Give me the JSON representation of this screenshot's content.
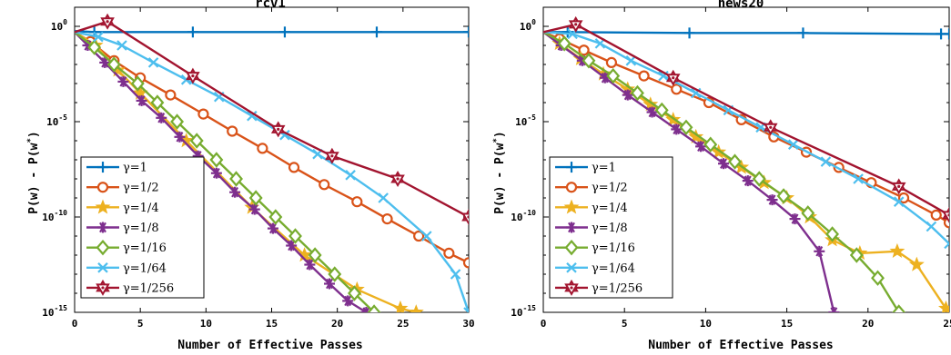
{
  "colors": {
    "g1": "#0072BD",
    "g2": "#D95319",
    "g4": "#EDB120",
    "g8": "#7E2F8E",
    "g16": "#77AC30",
    "g64": "#4DBEEE",
    "g256": "#A2142F"
  },
  "chart_data": [
    {
      "type": "line",
      "title": "rcv1",
      "xlabel": "Number of Effective Passes",
      "ylabel": "P(w) - P(w*)",
      "yscale": "log",
      "xlim": [
        0,
        30
      ],
      "ylim": [
        1e-15,
        10
      ],
      "xticks": [
        "0",
        "5",
        "10",
        "15",
        "20",
        "25",
        "30"
      ],
      "yticks": [
        {
          "base": "10",
          "exp": "0",
          "value": 0
        },
        {
          "base": "10",
          "exp": "-5",
          "value": -5
        },
        {
          "base": "10",
          "exp": "-10",
          "value": -10
        },
        {
          "base": "10",
          "exp": "-15",
          "value": -15
        }
      ],
      "legend_position": "lower-left",
      "series": [
        {
          "name": "γ=1",
          "color": "#0072BD",
          "marker": "plus",
          "x": [
            0,
            1.5,
            9,
            16,
            23,
            30
          ],
          "log10y": [
            -0.25,
            -0.3,
            -0.3,
            -0.3,
            -0.3,
            -0.3
          ]
        },
        {
          "name": "γ=1/2",
          "color": "#D95319",
          "marker": "circle",
          "x": [
            0,
            1.2,
            3,
            5,
            7.3,
            9.8,
            12,
            14.3,
            16.7,
            19,
            21.5,
            23.8,
            26.2,
            28.5,
            30
          ],
          "log10y": [
            -0.3,
            -0.8,
            -1.8,
            -2.7,
            -3.6,
            -4.6,
            -5.5,
            -6.4,
            -7.4,
            -8.3,
            -9.2,
            -10.1,
            -11.0,
            -11.9,
            -12.4
          ]
        },
        {
          "name": "γ=1/4",
          "color": "#EDB120",
          "marker": "star5",
          "x": [
            0,
            1.6,
            3.3,
            5,
            8.5,
            13.5,
            17.5,
            21.5,
            24.8,
            26
          ],
          "log10y": [
            -0.3,
            -1.0,
            -2.3,
            -3.5,
            -6.0,
            -9.5,
            -12.0,
            -13.8,
            -14.8,
            -15.0
          ]
        },
        {
          "name": "γ=1/8",
          "color": "#7E2F8E",
          "marker": "asterisk",
          "x": [
            0,
            1,
            2.3,
            3.7,
            5.1,
            6.6,
            8,
            9.4,
            10.8,
            12.2,
            13.7,
            15.1,
            16.5,
            17.9,
            19.4,
            20.8,
            22.2
          ],
          "log10y": [
            -0.3,
            -1.0,
            -1.9,
            -2.9,
            -3.9,
            -4.8,
            -5.8,
            -6.8,
            -7.7,
            -8.7,
            -9.6,
            -10.6,
            -11.5,
            -12.5,
            -13.5,
            -14.4,
            -15.0
          ]
        },
        {
          "name": "γ=1/16",
          "color": "#77AC30",
          "marker": "diamond",
          "x": [
            0,
            1.5,
            3,
            4.8,
            6.3,
            7.8,
            9.3,
            10.8,
            12.3,
            13.8,
            15.3,
            16.8,
            18.3,
            19.8,
            21.3,
            22.8
          ],
          "log10y": [
            -0.3,
            -1.1,
            -2.0,
            -3.0,
            -4.0,
            -5.0,
            -6.0,
            -7.0,
            -8.0,
            -9.0,
            -10.0,
            -11.0,
            -12.0,
            -13.0,
            -14.0,
            -15.0
          ]
        },
        {
          "name": "γ=1/64",
          "color": "#4DBEEE",
          "marker": "cross",
          "x": [
            0,
            1.8,
            3.6,
            6,
            8.5,
            11,
            13.5,
            16,
            18.5,
            21,
            23.5,
            26.8,
            29,
            30
          ],
          "log10y": [
            -0.3,
            -0.55,
            -1.0,
            -1.9,
            -2.8,
            -3.7,
            -4.7,
            -5.7,
            -6.7,
            -7.8,
            -9.0,
            -11.0,
            -13.0,
            -15.0
          ]
        },
        {
          "name": "γ=1/256",
          "color": "#A2142F",
          "marker": "hexagram",
          "x": [
            0,
            2.5,
            9,
            15.5,
            19.6,
            24.6,
            30
          ],
          "log10y": [
            -0.3,
            0.25,
            -2.6,
            -5.4,
            -6.8,
            -8.0,
            -10.0
          ]
        }
      ]
    },
    {
      "type": "line",
      "title": "news20",
      "xlabel": "Number of Effective Passes",
      "ylabel": "P(w) - P(w*)",
      "yscale": "log",
      "xlim": [
        0,
        25
      ],
      "ylim": [
        1e-15,
        10
      ],
      "xticks": [
        "0",
        "5",
        "10",
        "15",
        "20",
        "25"
      ],
      "yticks": [
        {
          "base": "10",
          "exp": "0",
          "value": 0
        },
        {
          "base": "10",
          "exp": "-5",
          "value": -5
        },
        {
          "base": "10",
          "exp": "-10",
          "value": -10
        },
        {
          "base": "10",
          "exp": "-15",
          "value": -15
        }
      ],
      "legend_position": "lower-left",
      "series": [
        {
          "name": "γ=1",
          "color": "#0072BD",
          "marker": "plus",
          "x": [
            0,
            1.5,
            9,
            16,
            24.5,
            25
          ],
          "log10y": [
            -0.3,
            -0.3,
            -0.35,
            -0.35,
            -0.4,
            -0.4
          ]
        },
        {
          "name": "γ=1/2",
          "color": "#D95319",
          "marker": "circle",
          "x": [
            0,
            1,
            2.5,
            4.2,
            6.2,
            8.2,
            10.2,
            12.2,
            14.2,
            16.2,
            18.2,
            20.2,
            22.2,
            24.2,
            25
          ],
          "log10y": [
            -0.3,
            -0.65,
            -1.25,
            -1.9,
            -2.6,
            -3.3,
            -4.0,
            -4.9,
            -5.8,
            -6.6,
            -7.4,
            -8.2,
            -9.0,
            -9.9,
            -10.3
          ]
        },
        {
          "name": "γ=1/4",
          "color": "#EDB120",
          "marker": "star5",
          "x": [
            0,
            1,
            2.3,
            3.7,
            5.2,
            6.6,
            8,
            9.4,
            10.8,
            12.2,
            13.6,
            15,
            16.4,
            17.8,
            19.5,
            21.8,
            23,
            24.8
          ],
          "log10y": [
            -0.3,
            -0.9,
            -1.7,
            -2.5,
            -3.3,
            -4.1,
            -4.9,
            -5.8,
            -6.6,
            -7.4,
            -8.2,
            -9.0,
            -10.0,
            -11.2,
            -11.9,
            -11.8,
            -12.5,
            -14.8
          ]
        },
        {
          "name": "γ=1/8",
          "color": "#7E2F8E",
          "marker": "asterisk",
          "x": [
            0,
            1.1,
            2.4,
            3.8,
            5.2,
            6.7,
            8.2,
            9.7,
            11.1,
            12.6,
            14.1,
            15.5,
            17,
            17.9
          ],
          "log10y": [
            -0.3,
            -1.0,
            -1.8,
            -2.7,
            -3.6,
            -4.5,
            -5.4,
            -6.3,
            -7.2,
            -8.1,
            -9.1,
            -10.1,
            -11.8,
            -15.0
          ]
        },
        {
          "name": "γ=1/16",
          "color": "#77AC30",
          "marker": "diamond",
          "x": [
            0,
            1.3,
            2.8,
            4.3,
            5.8,
            7.3,
            8.8,
            10.3,
            11.8,
            13.3,
            14.8,
            16.3,
            17.8,
            19.3,
            20.6,
            21.9
          ],
          "log10y": [
            -0.3,
            -0.9,
            -1.8,
            -2.6,
            -3.5,
            -4.4,
            -5.3,
            -6.2,
            -7.1,
            -8.0,
            -8.9,
            -9.8,
            -10.9,
            -12.0,
            -13.2,
            -15.0
          ]
        },
        {
          "name": "γ=1/64",
          "color": "#4DBEEE",
          "marker": "cross",
          "x": [
            0,
            1.8,
            3.5,
            5.4,
            7.4,
            9.4,
            11.4,
            13.4,
            15.4,
            17.4,
            19.4,
            21.9,
            23.9,
            25
          ],
          "log10y": [
            -0.3,
            -0.4,
            -0.9,
            -1.8,
            -2.6,
            -3.5,
            -4.4,
            -5.3,
            -6.2,
            -7.1,
            -8.0,
            -9.2,
            -10.5,
            -11.4
          ]
        },
        {
          "name": "γ=1/256",
          "color": "#A2142F",
          "marker": "hexagram",
          "x": [
            0,
            2,
            8,
            14,
            21.9,
            25
          ],
          "log10y": [
            -0.3,
            0.1,
            -2.7,
            -5.3,
            -8.4,
            -9.9
          ]
        }
      ]
    }
  ]
}
